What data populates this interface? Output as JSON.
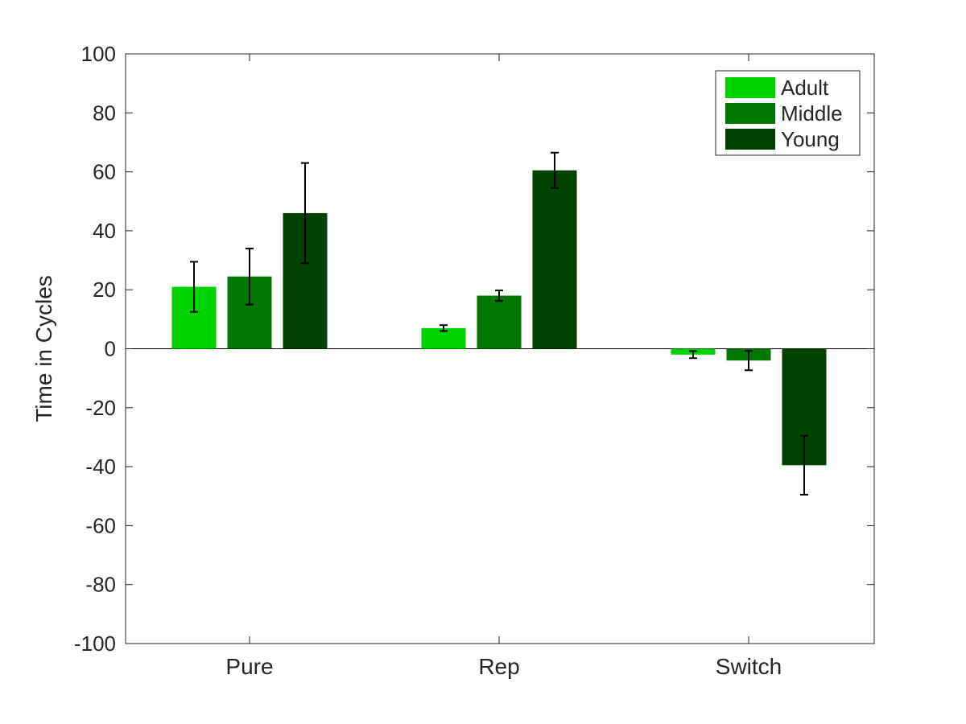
{
  "chart_data": {
    "type": "bar",
    "title": "",
    "xlabel": "",
    "ylabel": "Time in Cycles",
    "ylim": [
      -100,
      100
    ],
    "yticks": [
      -100,
      -80,
      -60,
      -40,
      -20,
      0,
      20,
      40,
      60,
      80,
      100
    ],
    "categories": [
      "Pure",
      "Rep",
      "Switch"
    ],
    "grid": false,
    "legend_position": "top-right",
    "series": [
      {
        "name": "Adult",
        "color": "#00d400",
        "values": [
          21,
          7,
          -2
        ],
        "error": [
          8.5,
          1,
          1.2
        ]
      },
      {
        "name": "Middle",
        "color": "#007700",
        "values": [
          24.5,
          18,
          -4
        ],
        "error": [
          9.5,
          1.8,
          3.3
        ]
      },
      {
        "name": "Young",
        "color": "#004200",
        "values": [
          46,
          60.5,
          -39.5
        ],
        "error": [
          17,
          6,
          10
        ]
      }
    ]
  }
}
